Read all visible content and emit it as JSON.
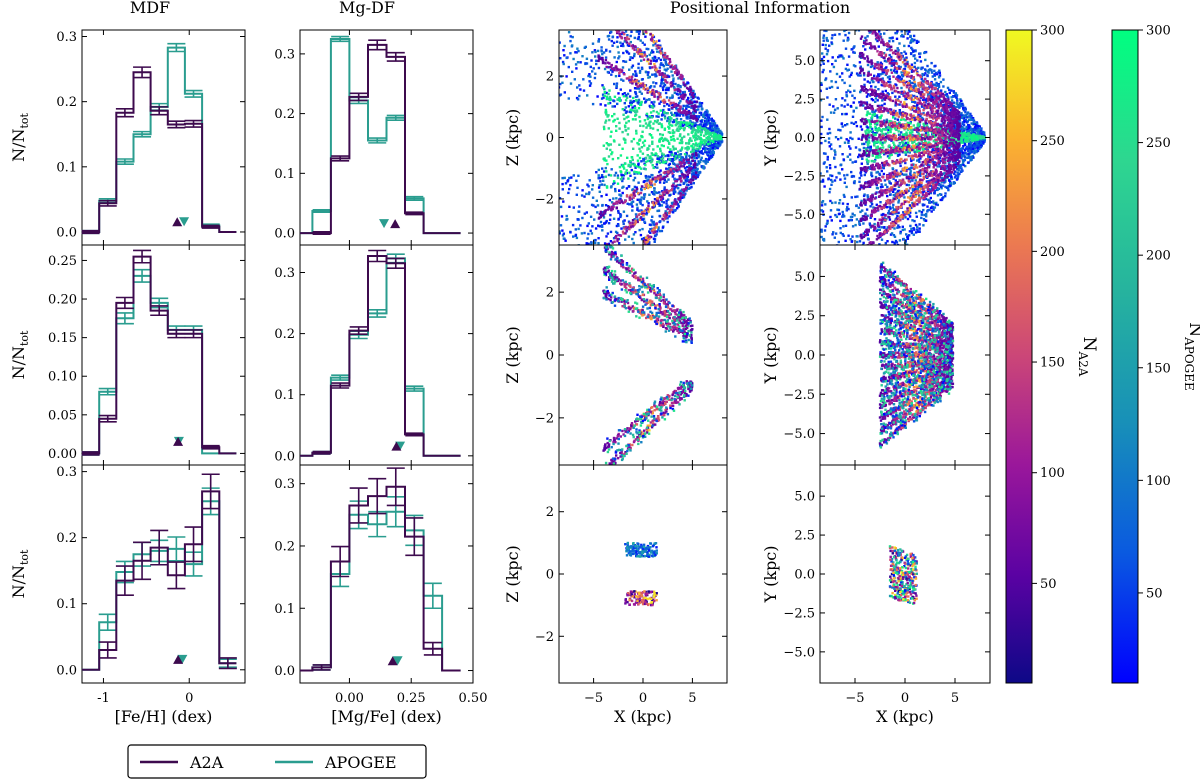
{
  "figure": {
    "column_titles": {
      "mdf": "MDF",
      "mgdf": "Mg-DF",
      "pos": "Positional Information"
    },
    "legend": {
      "a2a": "A2A",
      "apogee": "APOGEE"
    },
    "colors": {
      "a2a": "#3d0a4e",
      "apogee": "#2a9d8f"
    }
  },
  "chart_data": [
    {
      "id": "mdf",
      "type": "line",
      "step": true,
      "title": "MDF",
      "xlabel": "[Fe/H] (dex)",
      "ylabel": "N/N_tot",
      "xlim": [
        -1.25,
        0.65
      ],
      "xticks": [
        "-1",
        "0"
      ],
      "xtick_values": [
        -1,
        0
      ],
      "bin_edges": [
        -1.25,
        -1.05,
        -0.85,
        -0.65,
        -0.45,
        -0.25,
        -0.05,
        0.15,
        0.35,
        0.55,
        0.65
      ],
      "rows": [
        {
          "ylim": [
            -0.02,
            0.31
          ],
          "yticks": [
            "0.0",
            "0.1",
            "0.2",
            "0.3"
          ],
          "ytick_values": [
            0,
            0.1,
            0.2,
            0.3
          ],
          "series": [
            {
              "name": "A2A",
              "values": [
                0.0,
                0.044,
                0.183,
                0.245,
                0.186,
                0.165,
                0.166,
                0.008,
                0.0
              ],
              "err": [
                0.002,
                0.004,
                0.006,
                0.008,
                0.006,
                0.005,
                0.005,
                0.002,
                0.0
              ],
              "marker": -0.14,
              "marker_dir": "up"
            },
            {
              "name": "APOGEE",
              "values": [
                0.0,
                0.048,
                0.108,
                0.15,
                0.192,
                0.283,
                0.212,
                0.01,
                0.0
              ],
              "err": [
                0.002,
                0.003,
                0.004,
                0.004,
                0.005,
                0.006,
                0.005,
                0.002,
                0.0
              ],
              "marker": -0.06,
              "marker_dir": "down"
            }
          ]
        },
        {
          "ylim": [
            -0.015,
            0.27
          ],
          "yticks": [
            "0.00",
            "0.05",
            "0.10",
            "0.15",
            "0.20",
            "0.25"
          ],
          "ytick_values": [
            0,
            0.05,
            0.1,
            0.15,
            0.2,
            0.25
          ],
          "series": [
            {
              "name": "A2A",
              "values": [
                0.0,
                0.045,
                0.195,
                0.255,
                0.185,
                0.155,
                0.155,
                0.008,
                0.0
              ],
              "err": [
                0.002,
                0.004,
                0.007,
                0.008,
                0.006,
                0.005,
                0.005,
                0.002,
                0.0
              ],
              "marker": -0.13,
              "marker_dir": "up"
            },
            {
              "name": "APOGEE",
              "values": [
                0.0,
                0.08,
                0.175,
                0.23,
                0.195,
                0.16,
                0.16,
                0.0,
                0.0
              ],
              "err": [
                0.002,
                0.004,
                0.007,
                0.008,
                0.006,
                0.005,
                0.005,
                0.0,
                0.0
              ],
              "marker": -0.12,
              "marker_dir": "down"
            }
          ]
        },
        {
          "ylim": [
            -0.02,
            0.31
          ],
          "yticks": [
            "0.0",
            "0.1",
            "0.2",
            "0.3"
          ],
          "ytick_values": [
            0,
            0.1,
            0.2,
            0.3
          ],
          "series": [
            {
              "name": "A2A",
              "values": [
                0.0,
                0.03,
                0.135,
                0.165,
                0.185,
                0.143,
                0.19,
                0.27,
                0.01
              ],
              "err": [
                0.0,
                0.012,
                0.022,
                0.028,
                0.026,
                0.02,
                0.026,
                0.026,
                0.008
              ],
              "marker": -0.13,
              "marker_dir": "up"
            },
            {
              "name": "APOGEE",
              "values": [
                0.0,
                0.072,
                0.148,
                0.175,
                0.18,
                0.183,
                0.16,
                0.255,
                0.01
              ],
              "err": [
                0.0,
                0.012,
                0.016,
                0.018,
                0.016,
                0.018,
                0.018,
                0.02,
                0.006
              ],
              "marker": -0.08,
              "marker_dir": "down"
            }
          ]
        }
      ]
    },
    {
      "id": "mgdf",
      "type": "line",
      "step": true,
      "title": "Mg-DF",
      "xlabel": "[Mg/Fe] (dex)",
      "ylabel": "",
      "xlim": [
        -0.2,
        0.5
      ],
      "xticks": [
        "0.00",
        "0.25",
        "0.50"
      ],
      "xtick_values": [
        0,
        0.25,
        0.5
      ],
      "bin_edges": [
        -0.2,
        -0.15,
        -0.075,
        0.0,
        0.075,
        0.15,
        0.225,
        0.3,
        0.375,
        0.45,
        0.5
      ],
      "rows": [
        {
          "ylim": [
            -0.02,
            0.34
          ],
          "yticks": [
            "0.0",
            "0.1",
            "0.2",
            "0.3"
          ],
          "ytick_values": [
            0,
            0.1,
            0.2,
            0.3
          ],
          "series": [
            {
              "name": "A2A",
              "values": [
                0.0,
                0.0,
                0.125,
                0.228,
                0.315,
                0.295,
                0.033,
                0.0,
                0.0
              ],
              "err": [
                0.0,
                0.002,
                0.004,
                0.006,
                0.008,
                0.007,
                0.002,
                0.0,
                0.0
              ],
              "marker": 0.185,
              "marker_dir": "up"
            },
            {
              "name": "APOGEE",
              "values": [
                0.0,
                0.037,
                0.325,
                0.222,
                0.155,
                0.193,
                0.058,
                0.0,
                0.0
              ],
              "err": [
                0.0,
                0.002,
                0.004,
                0.005,
                0.004,
                0.004,
                0.003,
                0.0,
                0.0
              ],
              "marker": 0.14,
              "marker_dir": "down"
            }
          ]
        },
        {
          "ylim": [
            -0.015,
            0.345
          ],
          "yticks": [
            "0.0",
            "0.1",
            "0.2",
            "0.3"
          ],
          "ytick_values": [
            0,
            0.1,
            0.2,
            0.3
          ],
          "series": [
            {
              "name": "A2A",
              "values": [
                0.0,
                0.005,
                0.115,
                0.205,
                0.327,
                0.315,
                0.035,
                0.0,
                0.0
              ],
              "err": [
                0.0,
                0.002,
                0.004,
                0.006,
                0.009,
                0.008,
                0.002,
                0.0,
                0.0
              ],
              "marker": 0.19,
              "marker_dir": "up"
            },
            {
              "name": "APOGEE",
              "values": [
                0.0,
                0.005,
                0.128,
                0.198,
                0.233,
                0.323,
                0.11,
                0.0,
                0.0
              ],
              "err": [
                0.0,
                0.002,
                0.004,
                0.006,
                0.006,
                0.007,
                0.004,
                0.0,
                0.0
              ],
              "marker": 0.205,
              "marker_dir": "down"
            }
          ]
        },
        {
          "ylim": [
            -0.02,
            0.33
          ],
          "yticks": [
            "0.0",
            "0.1",
            "0.2",
            "0.3"
          ],
          "ytick_values": [
            0,
            0.1,
            0.2,
            0.3
          ],
          "series": [
            {
              "name": "A2A",
              "values": [
                0.0,
                0.005,
                0.175,
                0.265,
                0.28,
                0.295,
                0.215,
                0.035,
                0.0
              ],
              "err": [
                0.0,
                0.004,
                0.024,
                0.028,
                0.028,
                0.03,
                0.03,
                0.01,
                0.0
              ],
              "marker": 0.175,
              "marker_dir": "up"
            },
            {
              "name": "APOGEE",
              "values": [
                0.0,
                0.005,
                0.155,
                0.25,
                0.235,
                0.255,
                0.225,
                0.12,
                0.0
              ],
              "err": [
                0.0,
                0.004,
                0.02,
                0.022,
                0.02,
                0.024,
                0.024,
                0.02,
                0.0
              ],
              "marker": 0.195,
              "marker_dir": "down"
            }
          ]
        }
      ]
    },
    {
      "id": "xz",
      "type": "heatmap",
      "title": "Positional Information",
      "xlabel": "X (kpc)",
      "ylabel": "Z (kpc)",
      "xlim": [
        -8.5,
        8.5
      ],
      "ylim": [
        -3.5,
        3.5
      ],
      "xticks": [
        "−5",
        "0",
        "5"
      ],
      "xtick_values": [
        -5,
        0,
        5
      ],
      "yticks": [
        "−2",
        "0",
        "2"
      ],
      "ytick_values": [
        -2,
        0,
        2
      ],
      "apex": [
        8,
        0
      ],
      "rows": [
        "full sample fan to x=-8.5",
        "stripes within x -4..5",
        "compact patch near x=0"
      ]
    },
    {
      "id": "xy",
      "type": "heatmap",
      "xlabel": "X (kpc)",
      "ylabel": "Y (kpc)",
      "xlim": [
        -8.5,
        8.5
      ],
      "ylim": [
        -7,
        7
      ],
      "xticks": [
        "−5",
        "0",
        "5"
      ],
      "xtick_values": [
        -5,
        0,
        5
      ],
      "yticks": [
        "5.0",
        "2.5",
        "0.0",
        "−2.5",
        "−5.0"
      ],
      "ytick_values": [
        5,
        2.5,
        0,
        -2.5,
        -5
      ],
      "apex": [
        8,
        0
      ],
      "rows": [
        "full fan",
        "trimmed fan",
        "compact patch"
      ]
    },
    {
      "id": "colorbars",
      "type": "heatmap",
      "bars": [
        {
          "label": "N_A2A",
          "label_main": "N",
          "label_sub": "A2A",
          "range": [
            5,
            300
          ],
          "ticks": [
            "50",
            "100",
            "150",
            "200",
            "250",
            "300"
          ],
          "tick_values": [
            50,
            100,
            150,
            200,
            250,
            300
          ],
          "cmap": [
            "#0d0887",
            "#5b02a3",
            "#9a179b",
            "#cb4678",
            "#eb7852",
            "#fbb32f",
            "#f0f921"
          ]
        },
        {
          "label": "N_APOGEE",
          "label_main": "N",
          "label_sub": "APOGEE",
          "range": [
            10,
            300
          ],
          "ticks": [
            "50",
            "100",
            "150",
            "200",
            "250",
            "300"
          ],
          "tick_values": [
            50,
            100,
            150,
            200,
            250,
            300
          ],
          "cmap": [
            "#0000ff",
            "#0a5ae0",
            "#1890b8",
            "#26b39e",
            "#2ed690",
            "#00ff80"
          ]
        }
      ]
    }
  ]
}
